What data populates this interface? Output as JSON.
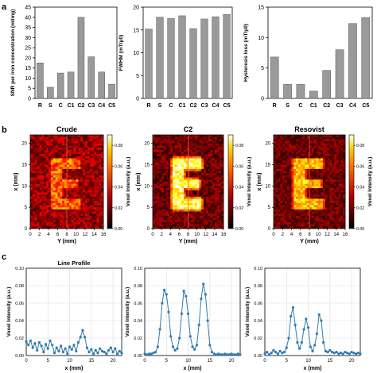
{
  "panel_labels": {
    "a": "a",
    "b": "b",
    "c": "c"
  },
  "colors": {
    "bar": "#9a9a9a",
    "line": "#2f7bb1",
    "heat_bg": "#1a0000"
  },
  "chart_data": [
    {
      "id": "a1",
      "type": "bar",
      "ylabel": "SNR per iron concentration (ml/mg)",
      "categories": [
        "R",
        "S",
        "C",
        "C1",
        "C2",
        "C3",
        "C4",
        "C5"
      ],
      "values": [
        17.5,
        5.5,
        12.5,
        13,
        40,
        20.5,
        13,
        7
      ],
      "ylim": [
        0,
        45
      ],
      "yticks": [
        0,
        5,
        10,
        15,
        20,
        25,
        30,
        35,
        40,
        45
      ]
    },
    {
      "id": "a2",
      "type": "bar",
      "ylabel": "FWHM (mT/μ0)",
      "categories": [
        "R",
        "S",
        "C",
        "C1",
        "C2",
        "C3",
        "C4",
        "C5"
      ],
      "values": [
        15.2,
        17.8,
        17.5,
        18.1,
        15.3,
        17.4,
        17.9,
        18.4
      ],
      "ylim": [
        0,
        20
      ],
      "yticks": [
        0,
        5,
        10,
        15,
        20
      ]
    },
    {
      "id": "a3",
      "type": "bar",
      "ylabel": "Hysteresis loss (mT/μ0)",
      "categories": [
        "R",
        "S",
        "C",
        "C1",
        "C2",
        "C3",
        "C4",
        "C5"
      ],
      "values": [
        6.8,
        2.3,
        2.3,
        1.2,
        4.6,
        8.0,
        12.3,
        13.3
      ],
      "ylim": [
        0,
        15
      ],
      "yticks": [
        0,
        5,
        10,
        15
      ]
    },
    {
      "id": "b1",
      "type": "heatmap",
      "title": "Crude",
      "xlabel": "Y (mm)",
      "ylabel": "x (mm)",
      "colorbar_label": "Voxel Intensity (a.u.)",
      "xticks": [
        0,
        2,
        4,
        6,
        8,
        10,
        12,
        14,
        16
      ],
      "yticks": [
        0,
        5,
        10,
        15,
        20
      ],
      "colorbar_ticks": [
        "0.00",
        "0.02",
        "0.04",
        "0.06",
        "0.08"
      ],
      "shape": "weak-E"
    },
    {
      "id": "b2",
      "type": "heatmap",
      "title": "C2",
      "xlabel": "Y (mm)",
      "ylabel": "x (mm)",
      "colorbar_label": "Voxel Intensity (a.u.)",
      "xticks": [
        0,
        2,
        4,
        6,
        8,
        10,
        12,
        14,
        16
      ],
      "yticks": [
        0,
        5,
        10,
        15,
        20
      ],
      "colorbar_ticks": [
        "0.00",
        "0.02",
        "0.04",
        "0.06",
        "0.08"
      ],
      "shape": "strong-E"
    },
    {
      "id": "b3",
      "type": "heatmap",
      "title": "Resovist",
      "xlabel": "Y (mm)",
      "ylabel": "x (mm)",
      "colorbar_label": "Voxel Intensity (a.u.)",
      "xticks": [
        0,
        2,
        4,
        6,
        8,
        10,
        12,
        14,
        16
      ],
      "yticks": [
        0,
        5,
        10,
        15,
        20
      ],
      "colorbar_ticks": [
        "0.00",
        "0.02",
        "0.04",
        "0.06",
        "0.08"
      ],
      "shape": "medium-E"
    },
    {
      "id": "c1",
      "type": "line",
      "title": "Line Profile",
      "xlabel": "x (mm)",
      "ylabel": "Voxel Intensity (a.u.)",
      "xlim": [
        0,
        22
      ],
      "ylim": [
        0,
        0.1
      ],
      "xticks": [
        0,
        5,
        10,
        15,
        20
      ],
      "yticks": [
        "0.00",
        "0.02",
        "0.04",
        "0.06",
        "0.08",
        "0.10"
      ],
      "x": [
        0,
        0.5,
        1,
        1.5,
        2,
        2.5,
        3,
        3.5,
        4,
        4.5,
        5,
        5.5,
        6,
        6.5,
        7,
        7.5,
        8,
        8.5,
        9,
        9.5,
        10,
        10.5,
        11,
        11.5,
        12,
        12.5,
        13,
        13.5,
        14,
        14.5,
        15,
        15.5,
        16,
        16.5,
        17,
        17.5,
        18,
        18.5,
        19,
        19.5,
        20,
        20.5,
        21,
        21.5,
        22
      ],
      "y": [
        0.016,
        0.012,
        0.017,
        0.009,
        0.014,
        0.006,
        0.015,
        0.011,
        0.004,
        0.013,
        0.008,
        0.017,
        0.012,
        0.003,
        0.009,
        0.005,
        0.011,
        0.004,
        0.008,
        0.002,
        0.01,
        0.007,
        0.012,
        0.005,
        0.015,
        0.021,
        0.029,
        0.021,
        0.009,
        0.004,
        0.007,
        0.002,
        0.006,
        0.003,
        0.008,
        0.005,
        0.004,
        0.002,
        0.006,
        0.009,
        0.004,
        0.008,
        0.002,
        0.005,
        0.003
      ]
    },
    {
      "id": "c2",
      "type": "line",
      "title": "",
      "xlabel": "x (mm)",
      "ylabel": "Voxel Intensity (a.u.)",
      "xlim": [
        0,
        22
      ],
      "ylim": [
        0,
        0.1
      ],
      "xticks": [
        0,
        5,
        10,
        15,
        20
      ],
      "yticks": [
        "0.00",
        "0.02",
        "0.04",
        "0.06",
        "0.08",
        "0.10"
      ],
      "x": [
        0,
        0.5,
        1,
        1.5,
        2,
        2.5,
        3,
        3.5,
        4,
        4.5,
        5,
        5.5,
        6,
        6.5,
        7,
        7.5,
        8,
        8.5,
        9,
        9.5,
        10,
        10.5,
        11,
        11.5,
        12,
        12.5,
        13,
        13.5,
        14,
        14.5,
        15,
        15.5,
        16,
        16.5,
        17,
        17.5,
        18,
        18.5,
        19,
        19.5,
        20,
        20.5,
        21,
        21.5,
        22
      ],
      "y": [
        0.002,
        0.001,
        0.002,
        0.002,
        0.003,
        0.004,
        0.01,
        0.03,
        0.06,
        0.075,
        0.07,
        0.05,
        0.022,
        0.01,
        0.006,
        0.008,
        0.02,
        0.048,
        0.074,
        0.068,
        0.048,
        0.022,
        0.01,
        0.007,
        0.012,
        0.035,
        0.065,
        0.082,
        0.07,
        0.04,
        0.012,
        0.004,
        0.002,
        0.001,
        0.002,
        0.001,
        0.001,
        0.002,
        0.001,
        0.001,
        0.002,
        0.001,
        0.001,
        0.002,
        0.001
      ]
    },
    {
      "id": "c3",
      "type": "line",
      "title": "",
      "xlabel": "x (mm)",
      "ylabel": "Voxel Intensity (a.u.)",
      "xlim": [
        0,
        22
      ],
      "ylim": [
        0,
        0.1
      ],
      "xticks": [
        0,
        5,
        10,
        15,
        20
      ],
      "yticks": [
        "0.00",
        "0.02",
        "0.04",
        "0.06",
        "0.08",
        "0.10"
      ],
      "x": [
        0,
        0.5,
        1,
        1.5,
        2,
        2.5,
        3,
        3.5,
        4,
        4.5,
        5,
        5.5,
        6,
        6.5,
        7,
        7.5,
        8,
        8.5,
        9,
        9.5,
        10,
        10.5,
        11,
        11.5,
        12,
        12.5,
        13,
        13.5,
        14,
        14.5,
        15,
        15.5,
        16,
        16.5,
        17,
        17.5,
        18,
        18.5,
        19,
        19.5,
        20,
        20.5,
        21,
        21.5,
        22
      ],
      "y": [
        0.002,
        0.004,
        0.001,
        0.003,
        0.006,
        0.004,
        0.002,
        0.005,
        0.003,
        0.004,
        0.009,
        0.02,
        0.045,
        0.055,
        0.035,
        0.015,
        0.008,
        0.015,
        0.03,
        0.042,
        0.032,
        0.01,
        0.005,
        0.012,
        0.025,
        0.047,
        0.04,
        0.015,
        0.005,
        0.004,
        0.006,
        0.004,
        0.003,
        0.004,
        0.002,
        0.003,
        0.002,
        0.004,
        0.003,
        0.002,
        0.004,
        0.003,
        0.002,
        0.003,
        0.002
      ]
    }
  ]
}
